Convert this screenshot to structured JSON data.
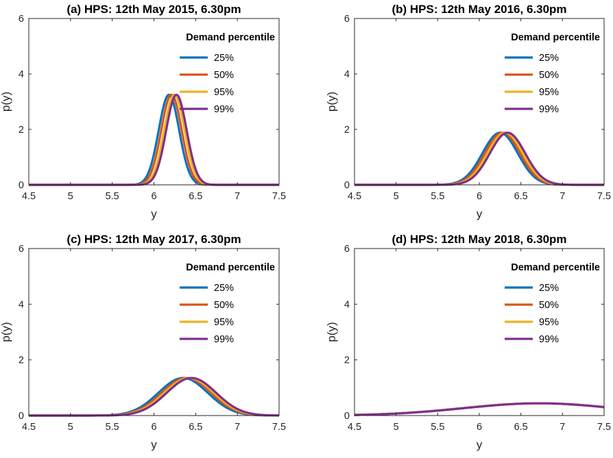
{
  "chart_data": [
    {
      "type": "line",
      "title": "(a) HPS: 12th May 2015, 6.30pm",
      "xlabel": "y",
      "ylabel": "p(y)",
      "xlim": [
        4.5,
        7.5
      ],
      "ylim": [
        0,
        6
      ],
      "xticks": [
        "4.5",
        "5",
        "5.5",
        "6",
        "6.5",
        "7",
        "7.5"
      ],
      "yticks": [
        "0",
        "2",
        "4",
        "6"
      ],
      "legend_title": "Demand percentile",
      "legend_position": "top-right",
      "series": [
        {
          "name": "25%",
          "color": "#0072BD",
          "distribution": "normal",
          "mean": 6.18,
          "peak": 3.25
        },
        {
          "name": "50%",
          "color": "#D95319",
          "distribution": "normal",
          "mean": 6.21,
          "peak": 3.25
        },
        {
          "name": "95%",
          "color": "#EDB120",
          "distribution": "normal",
          "mean": 6.245,
          "peak": 3.25
        },
        {
          "name": "99%",
          "color": "#7E2F8E",
          "distribution": "normal",
          "mean": 6.27,
          "peak": 3.25
        }
      ]
    },
    {
      "type": "line",
      "title": "(b) HPS: 12th May 2016, 6.30pm",
      "xlabel": "y",
      "ylabel": "p(y)",
      "xlim": [
        4.5,
        7.5
      ],
      "ylim": [
        0,
        6
      ],
      "xticks": [
        "4.5",
        "5",
        "5.5",
        "6",
        "6.5",
        "7",
        "7.5"
      ],
      "yticks": [
        "0",
        "2",
        "4",
        "6"
      ],
      "legend_title": "Demand percentile",
      "legend_position": "top-right",
      "series": [
        {
          "name": "25%",
          "color": "#0072BD",
          "distribution": "normal",
          "mean": 6.25,
          "peak": 1.88
        },
        {
          "name": "50%",
          "color": "#D95319",
          "distribution": "normal",
          "mean": 6.28,
          "peak": 1.88
        },
        {
          "name": "95%",
          "color": "#EDB120",
          "distribution": "normal",
          "mean": 6.31,
          "peak": 1.88
        },
        {
          "name": "99%",
          "color": "#7E2F8E",
          "distribution": "normal",
          "mean": 6.34,
          "peak": 1.88
        }
      ]
    },
    {
      "type": "line",
      "title": "(c) HPS: 12th May 2017, 6.30pm",
      "xlabel": "y",
      "ylabel": "p(y)",
      "xlim": [
        4.5,
        7.5
      ],
      "ylim": [
        0,
        6
      ],
      "xticks": [
        "4.5",
        "5",
        "5.5",
        "6",
        "6.5",
        "7",
        "7.5"
      ],
      "yticks": [
        "0",
        "2",
        "4",
        "6"
      ],
      "legend_title": "Demand percentile",
      "legend_position": "top-right",
      "series": [
        {
          "name": "25%",
          "color": "#0072BD",
          "distribution": "normal",
          "mean": 6.35,
          "peak": 1.35
        },
        {
          "name": "50%",
          "color": "#D95319",
          "distribution": "normal",
          "mean": 6.39,
          "peak": 1.35
        },
        {
          "name": "95%",
          "color": "#EDB120",
          "distribution": "normal",
          "mean": 6.42,
          "peak": 1.35
        },
        {
          "name": "99%",
          "color": "#7E2F8E",
          "distribution": "normal",
          "mean": 6.45,
          "peak": 1.35
        }
      ]
    },
    {
      "type": "line",
      "title": "(d) HPS: 12th May 2018, 6.30pm",
      "xlabel": "y",
      "ylabel": "p(y)",
      "xlim": [
        4.5,
        7.5
      ],
      "ylim": [
        0,
        6
      ],
      "xticks": [
        "4.5",
        "5",
        "5.5",
        "6",
        "6.5",
        "7",
        "7.5"
      ],
      "yticks": [
        "0",
        "2",
        "4",
        "6"
      ],
      "legend_title": "Demand percentile",
      "legend_position": "top-right",
      "series": [
        {
          "name": "25%",
          "color": "#0072BD",
          "distribution": "normal",
          "mean": 6.7,
          "peak": 0.44
        },
        {
          "name": "50%",
          "color": "#D95319",
          "distribution": "normal",
          "mean": 6.71,
          "peak": 0.44
        },
        {
          "name": "95%",
          "color": "#EDB120",
          "distribution": "normal",
          "mean": 6.72,
          "peak": 0.44
        },
        {
          "name": "99%",
          "color": "#7E2F8E",
          "distribution": "normal",
          "mean": 6.73,
          "peak": 0.44
        }
      ]
    }
  ]
}
